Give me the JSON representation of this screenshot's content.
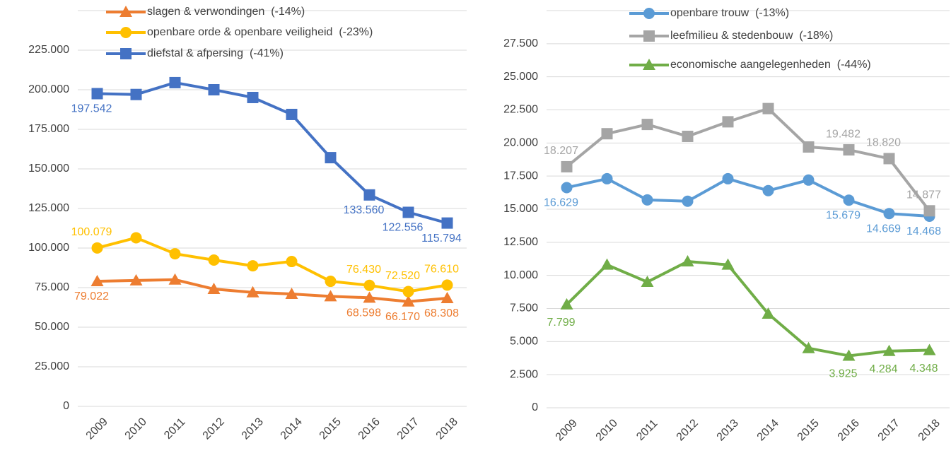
{
  "chart_data": [
    {
      "type": "line",
      "categories": [
        "2009",
        "2010",
        "2011",
        "2012",
        "2013",
        "2014",
        "2015",
        "2016",
        "2017",
        "2018"
      ],
      "ylim": [
        0,
        250000
      ],
      "yticks": [
        0,
        {
          "value": 25000,
          "label": "25.000"
        },
        {
          "value": 50000,
          "label": "50.000"
        },
        {
          "value": 75000,
          "label": "75.000"
        },
        {
          "value": 100000,
          "label": "100.000"
        },
        {
          "value": 125000,
          "label": "125.000"
        },
        {
          "value": 150000,
          "label": "150.000"
        },
        {
          "value": 175000,
          "label": "175.000"
        },
        {
          "value": 200000,
          "label": "200.000"
        },
        {
          "value": 225000,
          "label": "225.000"
        }
      ],
      "grid": true,
      "series": [
        {
          "name": "slagen & verwondingen  (-14%)",
          "color": "#ED7D31",
          "marker": "triangle",
          "values": [
            79022,
            79500,
            80000,
            74100,
            72000,
            71000,
            69500,
            68598,
            66170,
            68308
          ],
          "value_labels": [
            "79.022",
            null,
            null,
            null,
            null,
            null,
            null,
            "68.598",
            "66.170",
            "68.308"
          ]
        },
        {
          "name": "openbare orde & openbare veiligheid  (-23%)",
          "color": "#FFC000",
          "marker": "circle",
          "values": [
            100079,
            106500,
            96400,
            92400,
            88800,
            91500,
            79000,
            76430,
            72520,
            76610
          ],
          "value_labels": [
            "100.079",
            null,
            null,
            null,
            null,
            null,
            null,
            "76.430",
            "72.520",
            "76.610"
          ]
        },
        {
          "name": "diefstal & afpersing  (-41%)",
          "color": "#4472C4",
          "marker": "square",
          "values": [
            197542,
            197000,
            204500,
            200000,
            195100,
            184400,
            157100,
            133560,
            122556,
            115794
          ],
          "value_labels": [
            "197.542",
            null,
            null,
            null,
            null,
            null,
            null,
            "133.560",
            "122.556",
            "115.794"
          ]
        }
      ]
    },
    {
      "type": "line",
      "categories": [
        "2009",
        "2010",
        "2011",
        "2012",
        "2013",
        "2014",
        "2015",
        "2016",
        "2017",
        "2018"
      ],
      "ylim": [
        0,
        30000
      ],
      "yticks": [
        0,
        {
          "value": 2500,
          "label": "2.500"
        },
        {
          "value": 5000,
          "label": "5.000"
        },
        {
          "value": 7500,
          "label": "7.500"
        },
        {
          "value": 10000,
          "label": "10.000"
        },
        {
          "value": 12500,
          "label": "12.500"
        },
        {
          "value": 15000,
          "label": "15.000"
        },
        {
          "value": 17500,
          "label": "17.500"
        },
        {
          "value": 20000,
          "label": "20.000"
        },
        {
          "value": 22500,
          "label": "22.500"
        },
        {
          "value": 25000,
          "label": "25.000"
        },
        {
          "value": 27500,
          "label": "27.500"
        }
      ],
      "grid": true,
      "series": [
        {
          "name": "openbare trouw  (-13%)",
          "color": "#5B9BD5",
          "marker": "circle",
          "values": [
            16629,
            17300,
            15700,
            15600,
            17300,
            16400,
            17200,
            15679,
            14669,
            14468
          ],
          "value_labels": [
            "16.629",
            null,
            null,
            null,
            null,
            null,
            null,
            "15.679",
            "14.669",
            "14.468"
          ]
        },
        {
          "name": "leefmilieu & stedenbouw  (-18%)",
          "color": "#A5A5A5",
          "marker": "square",
          "values": [
            18207,
            20700,
            21400,
            20500,
            21600,
            22600,
            19700,
            19482,
            18820,
            14877
          ],
          "value_labels": [
            "18.207",
            null,
            null,
            null,
            null,
            null,
            null,
            "19.482",
            "18.820",
            "14.877"
          ]
        },
        {
          "name": "economische aangelegenheden  (-44%)",
          "color": "#70AD47",
          "marker": "triangle",
          "values": [
            7799,
            10800,
            9500,
            11050,
            10800,
            7100,
            4500,
            3925,
            4284,
            4348
          ],
          "value_labels": [
            "7.799",
            null,
            null,
            null,
            null,
            null,
            null,
            "3.925",
            "4.284",
            "4.348"
          ]
        }
      ]
    }
  ]
}
